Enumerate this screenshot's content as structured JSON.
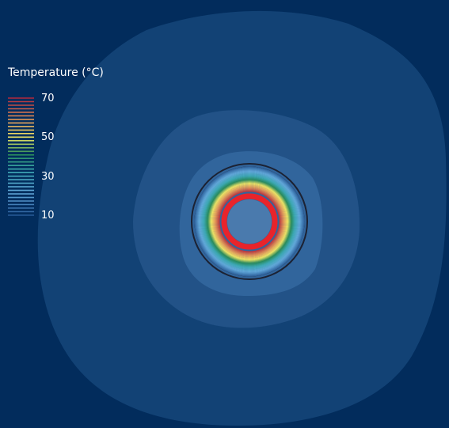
{
  "legend": {
    "title": "Temperature (°C)",
    "ticks": [
      {
        "label": "70",
        "value": 70
      },
      {
        "label": "50",
        "value": 50
      },
      {
        "label": "30",
        "value": 30
      },
      {
        "label": "10",
        "value": 10
      }
    ],
    "range": [
      6,
      72
    ]
  },
  "colors": {
    "background": "#022c5c",
    "zone_outer": "#124275",
    "zone_middle": "#225287",
    "zone_inner": "#31659c",
    "hot_ring": "#e8242b",
    "core": "#4a7aad",
    "outline": "#1c2233"
  },
  "chart_data": {
    "type": "heatmap",
    "description_of_field": "radial temperature contours around a central heat source",
    "contour_levels": [
      8,
      10,
      12,
      14,
      16,
      18,
      20,
      22,
      24,
      26,
      28,
      30,
      32,
      34,
      36,
      38,
      40,
      42,
      44,
      46,
      48,
      50,
      52,
      54,
      56,
      58,
      60,
      62,
      64,
      66,
      68,
      70
    ],
    "colorbar": {
      "min": 6,
      "max": 72,
      "ticks": [
        70,
        50,
        30,
        10
      ]
    }
  }
}
